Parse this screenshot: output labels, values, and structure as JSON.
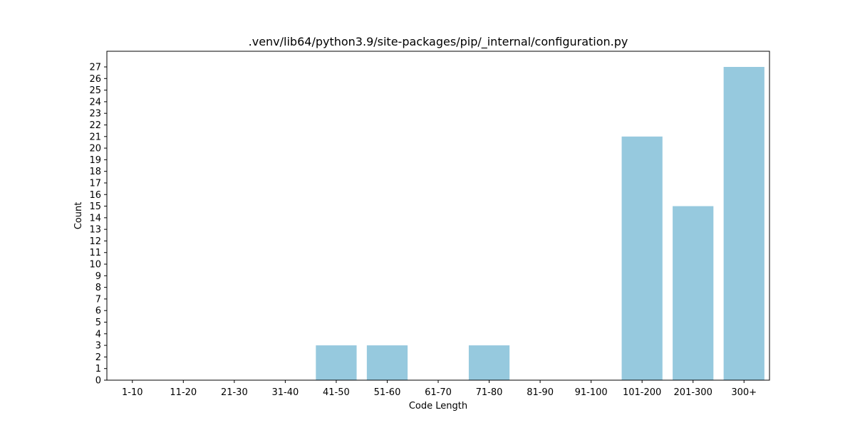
{
  "chart_data": {
    "type": "bar",
    "title": ".venv/lib64/python3.9/site-packages/pip/_internal/configuration.py",
    "xlabel": "Code Length",
    "ylabel": "Count",
    "categories": [
      "1-10",
      "11-20",
      "21-30",
      "31-40",
      "41-50",
      "51-60",
      "61-70",
      "71-80",
      "81-90",
      "91-100",
      "101-200",
      "201-300",
      "300+"
    ],
    "values": [
      0,
      0,
      0,
      0,
      3,
      3,
      0,
      3,
      0,
      0,
      21,
      15,
      27
    ],
    "ylim": [
      0,
      28.35
    ],
    "yticks": [
      0,
      1,
      2,
      3,
      4,
      5,
      6,
      7,
      8,
      9,
      10,
      11,
      12,
      13,
      14,
      15,
      16,
      17,
      18,
      19,
      20,
      21,
      22,
      23,
      24,
      25,
      26,
      27
    ],
    "bar_color": "#96c9de",
    "grid": false,
    "legend": false
  }
}
